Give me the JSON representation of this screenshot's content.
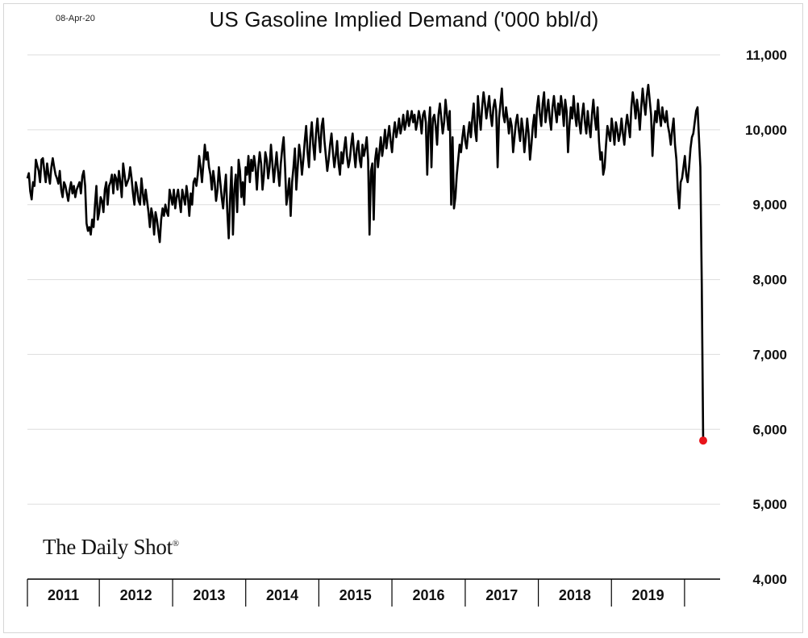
{
  "date_stamp": "08-Apr-20",
  "title": "US Gasoline Implied Demand ('000 bbl/d)",
  "watermark": "The Daily Shot",
  "watermark_mark": "®",
  "colors": {
    "line": "#000000",
    "last_point": "#e8141b",
    "grid": "#dddddd"
  },
  "chart_data": {
    "type": "line",
    "title": "US Gasoline Implied Demand ('000 bbl/d)",
    "xlabel": "",
    "ylabel": "",
    "ylim": [
      4000,
      11000
    ],
    "yticks": [
      4000,
      5000,
      6000,
      7000,
      8000,
      9000,
      10000,
      11000
    ],
    "ytick_labels": [
      "4,000",
      "5,000",
      "6,000",
      "7,000",
      "8,000",
      "9,000",
      "10,000",
      "11,000"
    ],
    "y_axis_side": "right",
    "x_categories": [
      "2011",
      "2012",
      "2013",
      "2014",
      "2015",
      "2016",
      "2017",
      "2018",
      "2019"
    ],
    "grid": "horizontal",
    "series": [
      {
        "frequency": "weekly",
        "start": "2011-01-07",
        "end": "2020-04-03",
        "values": [
          9350,
          9420,
          9180,
          9070,
          9300,
          9250,
          9600,
          9520,
          9450,
          9300,
          9600,
          9620,
          9450,
          9300,
          9550,
          9400,
          9280,
          9500,
          9620,
          9500,
          9400,
          9350,
          9280,
          9450,
          9200,
          9100,
          9300,
          9250,
          9150,
          9050,
          9200,
          9300,
          9150,
          9250,
          9100,
          9200,
          9250,
          9300,
          9150,
          9380,
          9450,
          9250,
          8750,
          8650,
          8700,
          8600,
          8800,
          8700,
          9000,
          9250,
          8800,
          8900,
          9100,
          9050,
          8900,
          9200,
          9300,
          9000,
          9250,
          9300,
          9400,
          9150,
          9400,
          9350,
          9200,
          9450,
          9300,
          9100,
          9550,
          9400,
          9250,
          9300,
          9350,
          9500,
          9350,
          9150,
          9000,
          9300,
          9200,
          9050,
          9000,
          9350,
          9150,
          9000,
          9200,
          9050,
          8900,
          8700,
          8950,
          8850,
          8600,
          8900,
          8800,
          8650,
          8500,
          8800,
          8950,
          8850,
          9000,
          8900,
          8850,
          9200,
          9100,
          9000,
          9200,
          8950,
          9100,
          9200,
          9050,
          8900,
          9200,
          9100,
          9000,
          9250,
          9100,
          8850,
          9150,
          9000,
          9300,
          9350,
          9250,
          9400,
          9650,
          9500,
          9300,
          9550,
          9800,
          9600,
          9700,
          9500,
          9400,
          9200,
          9450,
          9300,
          9050,
          9200,
          9500,
          9300,
          9100,
          8950,
          9200,
          9400,
          8900,
          8550,
          9100,
          9500,
          8600,
          9200,
          9400,
          8900,
          9600,
          9450,
          9100,
          9300,
          9000,
          9500,
          9400,
          9650,
          9300,
          9600,
          9450,
          9650,
          9500,
          9200,
          9500,
          9700,
          9550,
          9200,
          9400,
          9700,
          9600,
          9350,
          9500,
          9800,
          9550,
          9300,
          9500,
          9700,
          9450,
          9250,
          9550,
          9750,
          9900,
          9500,
          9000,
          9150,
          9350,
          8850,
          9300,
          9500,
          9750,
          9200,
          9500,
          9800,
          9650,
          9400,
          9600,
          9850,
          10050,
          9700,
          9500,
          9900,
          10100,
          9800,
          9600,
          9950,
          10150,
          9900,
          9700,
          10050,
          10150,
          9850,
          9650,
          9450,
          9600,
          9800,
          9950,
          9700,
          9500,
          9650,
          9850,
          9550,
          9400,
          9700,
          9550,
          9750,
          9900,
          9650,
          9500,
          9600,
          9800,
          9950,
          9700,
          9500,
          9750,
          9850,
          9600,
          9500,
          9800,
          9650,
          9750,
          9900,
          9600,
          8600,
          9450,
          9550,
          8800,
          9600,
          9750,
          9500,
          9700,
          9900,
          9650,
          9800,
          10000,
          9750,
          9900,
          10050,
          9850,
          9700,
          9950,
          10100,
          9900,
          10000,
          10150,
          9950,
          10050,
          10200,
          10000,
          10100,
          10250,
          10050,
          10150,
          10250,
          10100,
          10200,
          10000,
          10100,
          10250,
          10150,
          9950,
          10200,
          10250,
          10100,
          9400,
          10050,
          10300,
          9500,
          10150,
          10200,
          10050,
          9800,
          10200,
          10350,
          10150,
          9950,
          10100,
          10400,
          10200,
          10000,
          10250,
          9000,
          9900,
          8950,
          9100,
          9400,
          9600,
          9800,
          9700,
          9900,
          10050,
          9850,
          9750,
          9950,
          10100,
          9900,
          10150,
          10350,
          10000,
          9850,
          10450,
          10200,
          10000,
          10300,
          10500,
          10350,
          10150,
          10300,
          10450,
          10200,
          10050,
          10300,
          10400,
          10250,
          9500,
          10150,
          10350,
          10550,
          10200,
          10100,
          10300,
          10150,
          9950,
          10150,
          10050,
          9700,
          9900,
          10100,
          10200,
          10000,
          9850,
          10150,
          10000,
          9700,
          9900,
          10150,
          9950,
          9600,
          9800,
          10050,
          10200,
          9900,
          10300,
          10450,
          10200,
          10050,
          10350,
          10500,
          10100,
          10250,
          10400,
          10150,
          10000,
          10300,
          10450,
          10250,
          10100,
          10350,
          10200,
          10450,
          10300,
          10050,
          10400,
          10250,
          9700,
          10050,
          10300,
          10150,
          10450,
          10200,
          10050,
          10350,
          10100,
          9950,
          10200,
          10350,
          10100,
          9950,
          10250,
          10050,
          9900,
          10200,
          10400,
          10150,
          10000,
          10300,
          9850,
          9600,
          9700,
          9400,
          9500,
          9800,
          10050,
          9950,
          9850,
          10150,
          10000,
          9800,
          10100,
          10000,
          9850,
          9950,
          10150,
          9950,
          9800,
          10050,
          10200,
          10050,
          9900,
          10300,
          10500,
          10350,
          10150,
          10400,
          10250,
          10000,
          10300,
          10550,
          10350,
          10200,
          10450,
          10600,
          10400,
          10200,
          9650,
          10050,
          10250,
          10100,
          10400,
          10200,
          10050,
          10300,
          10150,
          10100,
          10250,
          10050,
          9950,
          9800,
          10000,
          10150,
          9800,
          9600,
          9200,
          8950,
          9300,
          9350,
          9500,
          9650,
          9400,
          9300,
          9500,
          9750,
          9900,
          9950,
          10100,
          10250,
          10300,
          9900,
          9500,
          7950,
          5850
        ]
      }
    ],
    "last_point": {
      "date": "2020-04-03",
      "value": 5850
    }
  }
}
